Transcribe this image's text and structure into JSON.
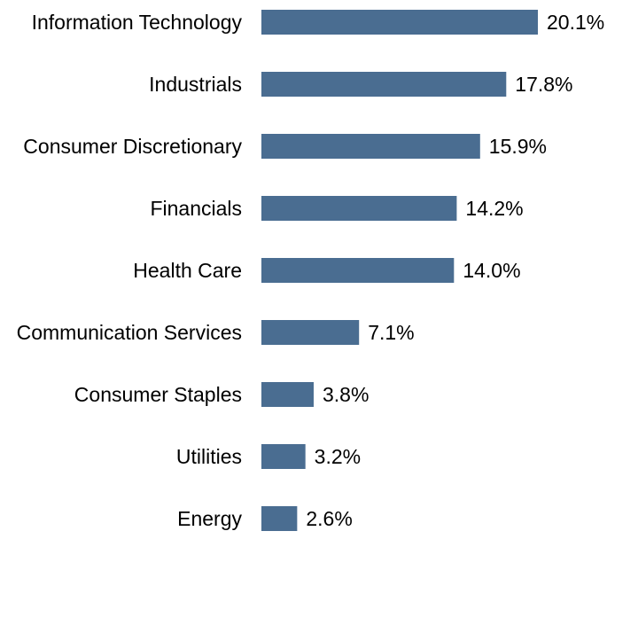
{
  "chart_data": {
    "type": "bar",
    "orientation": "horizontal",
    "title": "",
    "xlabel": "",
    "ylabel": "",
    "bar_color": "#4a6d91",
    "value_suffix": "%",
    "categories": [
      "Information Technology",
      "Industrials",
      "Consumer Discretionary",
      "Financials",
      "Health Care",
      "Communication Services",
      "Consumer Staples",
      "Utilities",
      "Energy"
    ],
    "values": [
      20.1,
      17.8,
      15.9,
      14.2,
      14.0,
      7.1,
      3.8,
      3.2,
      2.6
    ],
    "value_labels": [
      "20.1%",
      "17.8%",
      "15.9%",
      "14.2%",
      "14.0%",
      "7.1%",
      "3.8%",
      "3.2%",
      "2.6%"
    ],
    "xlim": [
      0,
      20.1
    ],
    "grid": false,
    "legend": "none"
  }
}
